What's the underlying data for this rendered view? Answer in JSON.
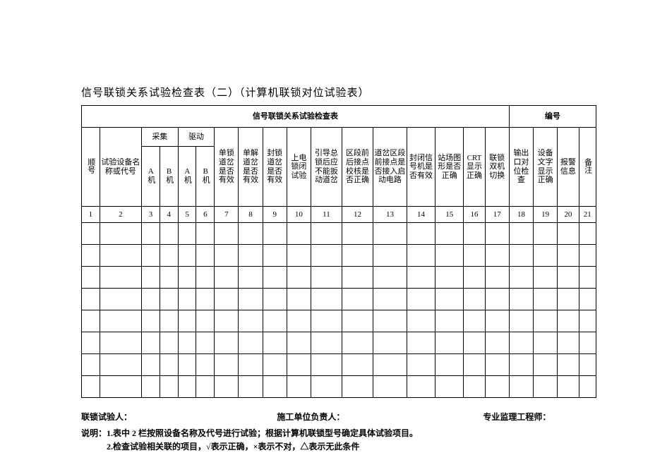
{
  "doc_title": "信号联锁关系试验检查表（二）（计算机联锁对位试验表）",
  "table_title": "信号联锁关系试验检查表",
  "serial_label": "编号",
  "colgroup_widths_pct": [
    3.4,
    7.8,
    3.4,
    3.4,
    3.4,
    3.4,
    4.5,
    4.5,
    4.5,
    4.5,
    5.8,
    5.8,
    6.3,
    5.3,
    5.3,
    4.0,
    4.5,
    4.5,
    4.5,
    4.0,
    3.2
  ],
  "headers": {
    "col1": "顺号",
    "col2": "试验设备名称或代号",
    "grp_cj": "采集",
    "grp_qd": "驱动",
    "ab_a": "A机",
    "ab_b": "B机",
    "col7": "单锁道岔是否有效",
    "col8": "单解道岔是否有效",
    "col9": "封锁道岔是否有效",
    "col10": "上电锁闭试验",
    "col11": "引导总锁后应不能扳动道岔",
    "col12": "区段前后接点校核是否正确",
    "col13": "道岔区段前接点是否接入启动电路",
    "col14": "封闭信号机是否有效",
    "col15": "站场图形是否正确",
    "col16": "CRT显示正确",
    "col17": "联锁双机切换",
    "col18": "输出口对位检查",
    "col19": "设备文字显示正确",
    "col20": "报警信息",
    "col21": "备注"
  },
  "col_numbers": [
    "1",
    "2",
    "3",
    "4",
    "5",
    "6",
    "7",
    "8",
    "9",
    "10",
    "11",
    "12",
    "13",
    "14",
    "15",
    "16",
    "17",
    "18",
    "19",
    "20",
    "21"
  ],
  "empty_rows": 8,
  "signatures": {
    "tester": "联锁试验人：",
    "unit_lead": "施工单位负责人：",
    "supervisor": "专业监理工程师："
  },
  "notes_label": "说明：",
  "notes": [
    "1.表中 2 栏按照设备名称及代号进行试验；根据计算机联锁型号确定具体试验项目。",
    "2.检查试验相关联的项目，√表示正确，×表示不对，△表示无此条件"
  ],
  "colors": {
    "text": "#000000",
    "background": "#ffffff",
    "border": "#000000"
  },
  "font": {
    "family": "SimSun",
    "title_size_pt": 11,
    "cell_size_pt": 8,
    "notes_size_pt": 9
  }
}
